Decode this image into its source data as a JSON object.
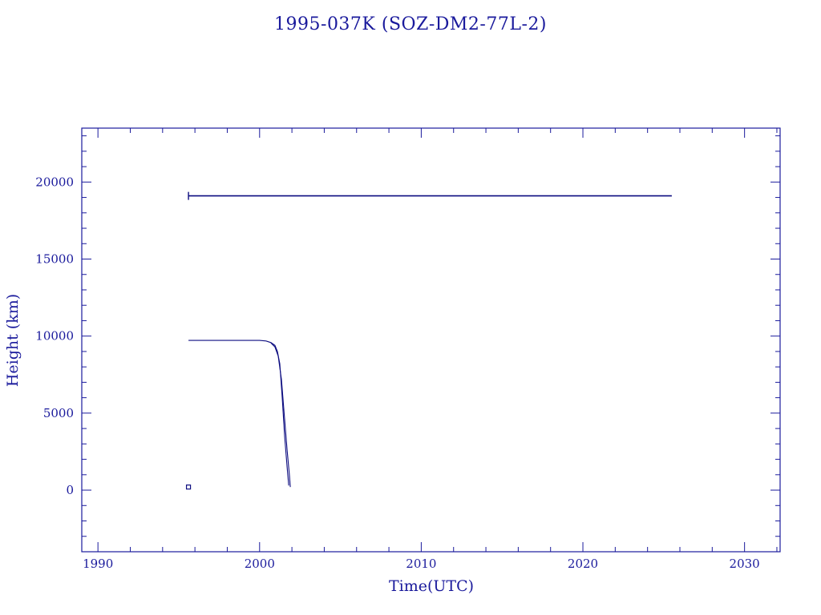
{
  "chart_data": {
    "type": "line",
    "title": "1995-037K (SOZ-DM2-77L-2)",
    "xlabel": "Time(UTC)",
    "ylabel": "Height (km)",
    "xlim": [
      1989,
      2032.2
    ],
    "ylim": [
      -4000,
      23500
    ],
    "x_ticks": [
      1990,
      2000,
      2010,
      2020,
      2030
    ],
    "y_ticks": [
      0,
      5000,
      10000,
      15000,
      20000
    ],
    "x_tick_labels": [
      "1990",
      "2000",
      "2010",
      "2020",
      "2030"
    ],
    "y_tick_labels": [
      "0",
      "5000",
      "10000",
      "15000",
      "20000"
    ],
    "grid": false,
    "legend": "none",
    "colors": {
      "ink": "#1a1a9c",
      "series": "#0d0d80"
    },
    "series": [
      {
        "values": [
          [
            1995.6,
            19100
          ],
          [
            2025.5,
            19100
          ]
        ],
        "start_marker": "tick"
      },
      {
        "values": [
          [
            1995.6,
            9720
          ],
          [
            2000.0,
            9720
          ],
          [
            2000.4,
            9680
          ],
          [
            2000.7,
            9580
          ],
          [
            2000.95,
            9400
          ],
          [
            2001.1,
            9000
          ],
          [
            2001.25,
            8200
          ],
          [
            2001.4,
            6000
          ],
          [
            2001.55,
            3500
          ],
          [
            2001.7,
            1500
          ],
          [
            2001.8,
            300
          ]
        ]
      },
      {
        "values": [
          [
            2000.7,
            9560
          ],
          [
            2000.95,
            9300
          ],
          [
            2001.15,
            8700
          ],
          [
            2001.35,
            7200
          ],
          [
            2001.55,
            4600
          ],
          [
            2001.7,
            2600
          ],
          [
            2001.85,
            900
          ],
          [
            2001.9,
            200
          ]
        ]
      },
      {
        "type": "scatter",
        "values": [
          [
            1995.6,
            200
          ]
        ],
        "marker": "square"
      }
    ]
  }
}
